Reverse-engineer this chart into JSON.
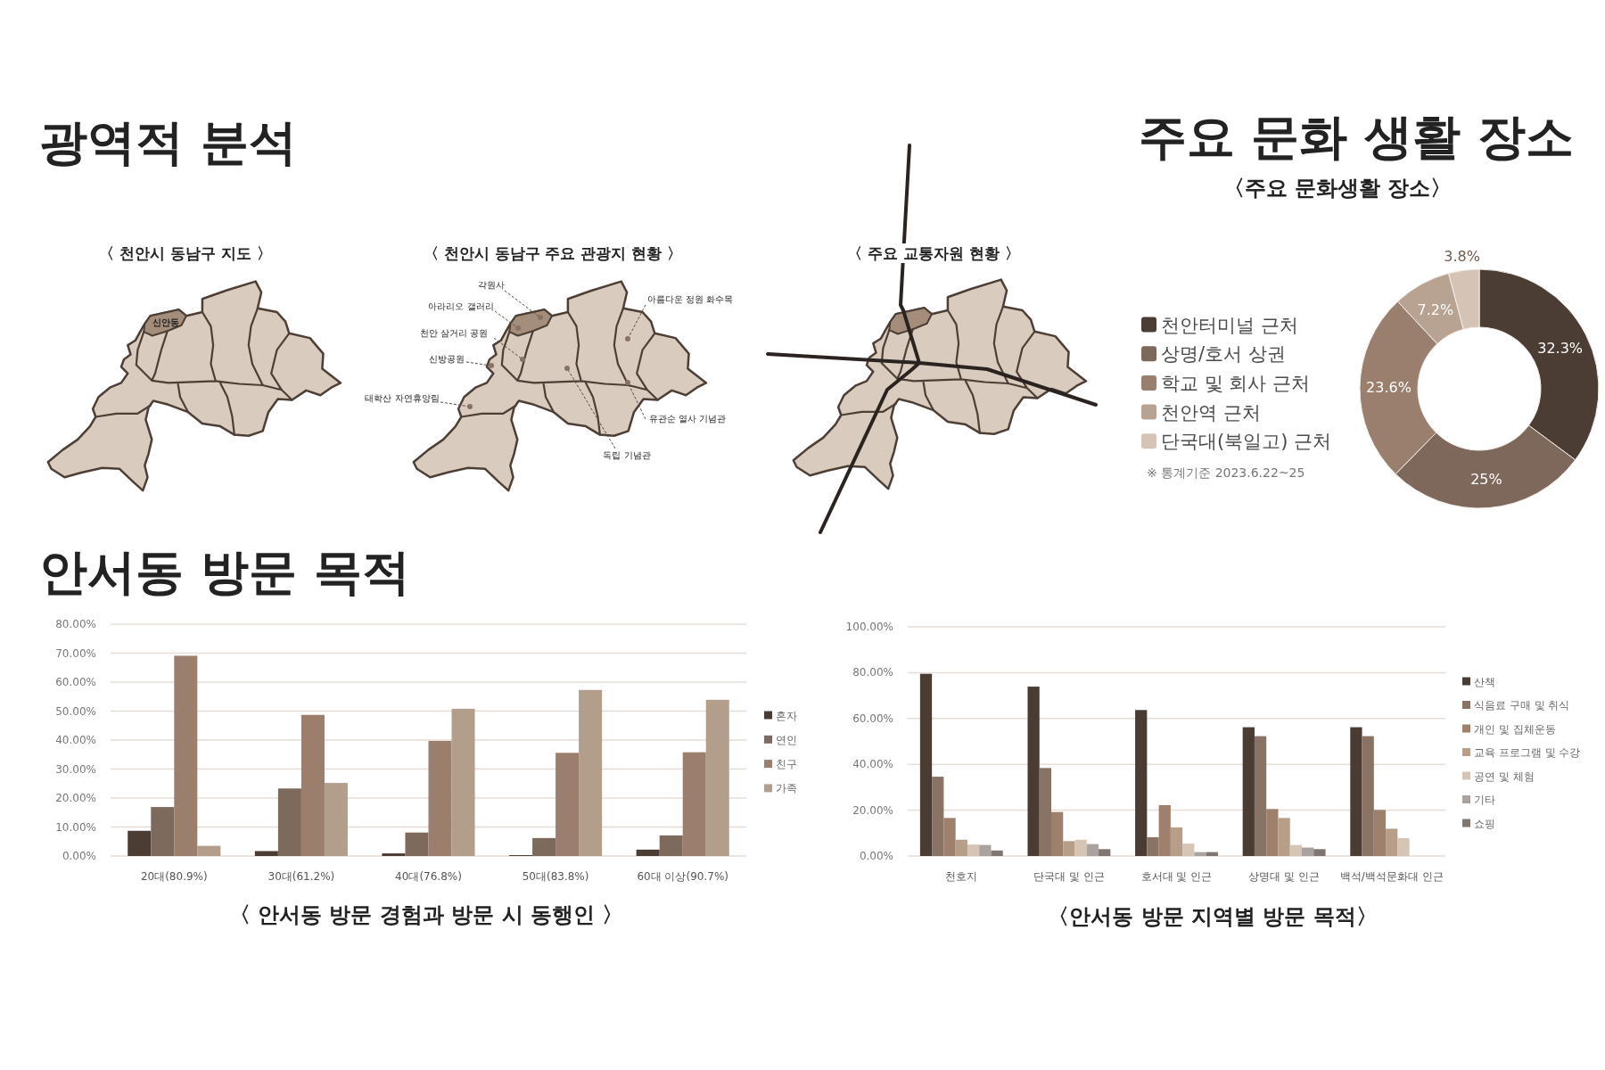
{
  "chart_data": [
    {
      "type": "other",
      "title": "광역적 분석",
      "annotations": [
        "〈 천안시 동남구 지도 〉",
        "〈 천안시 동남구 주요 관광지 현황 〉",
        "〈 주요 교통자원 현황 〉",
        "신안동",
        "각원사",
        "아라리오 갤러리",
        "천안 삼거리 공원",
        "신방공원",
        "태학산 자연휴양림",
        "아름다운 정원 화수목",
        "유관순 열사 기념관",
        "독립 기념관"
      ]
    },
    {
      "type": "donut",
      "title": "주요 문화 생활 장소",
      "subtitle": "〈주요 문화생활 장소〉",
      "categories": [
        "천안터미널 근처",
        "상명/호서 상권",
        "학교 및 회사 근처",
        "천안역 근처",
        "단국대(북일고) 근처"
      ],
      "values": [
        32.3,
        25,
        23.6,
        7.2,
        3.8
      ],
      "value_labels": [
        "32.3%",
        "25%",
        "23.6%",
        "7.2%",
        "3.8%"
      ],
      "colors": [
        "#4b3d34",
        "#7d685b",
        "#9b7f6e",
        "#b8a291",
        "#d5c4b6"
      ],
      "legend": "left",
      "annotations": [
        "※ 통계기준 2023.6.22~25"
      ]
    },
    {
      "type": "bar",
      "title": "안서동 방문 목적",
      "subtitle": "〈 안서동 방문 경험과 방문 시 동행인 〉",
      "categories": [
        "20대(80.9%)",
        "30대(61.2%)",
        "40대(76.8%)",
        "50대(83.8%)",
        "60대 이상(90.7%)"
      ],
      "series": [
        {
          "name": "혼자",
          "color": "#4b3d34",
          "values": [
            8.7,
            1.7,
            0.9,
            0.3,
            2.2
          ]
        },
        {
          "name": "연인",
          "color": "#7e6a5d",
          "values": [
            16.9,
            23.3,
            8.1,
            6.2,
            7.1
          ]
        },
        {
          "name": "친구",
          "color": "#9c7e6c",
          "values": [
            69.1,
            48.7,
            39.7,
            35.6,
            35.8
          ]
        },
        {
          "name": "가족",
          "color": "#b39d8b",
          "values": [
            3.5,
            25.2,
            50.8,
            57.3,
            53.9
          ]
        }
      ],
      "ylim": [
        0,
        80
      ],
      "yticks": [
        {
          "value": 0,
          "label": "0.00%"
        },
        {
          "value": 10,
          "label": "10.00%"
        },
        {
          "value": 20,
          "label": "20.00%"
        },
        {
          "value": 30,
          "label": "30.00%"
        },
        {
          "value": 40,
          "label": "40.00%"
        },
        {
          "value": 50,
          "label": "50.00%"
        },
        {
          "value": 60,
          "label": "60.00%"
        },
        {
          "value": 70,
          "label": "70.00%"
        },
        {
          "value": 80,
          "label": "80.00%"
        }
      ],
      "grid": "y",
      "legend": "right"
    },
    {
      "type": "bar",
      "title": "〈안서동 방문 지역별 방문 목적〉",
      "categories": [
        "천호지",
        "단국대 및 인근",
        "호서대 및 인근",
        "상명대 및 인근",
        "백석/백석문화대 인근"
      ],
      "series": [
        {
          "name": "산책",
          "color": "#4a3c33",
          "values": [
            79.5,
            73.9,
            63.7,
            56.2,
            56.2
          ]
        },
        {
          "name": "식음료 구매 및 취식",
          "color": "#887365",
          "values": [
            34.6,
            38.4,
            8.2,
            52.3,
            52.3
          ]
        },
        {
          "name": "개인 및 집체운동",
          "color": "#9f806d",
          "values": [
            16.6,
            19.2,
            22.2,
            20.5,
            20.1
          ]
        },
        {
          "name": "교육 프로그램 및 수강",
          "color": "#b79e89",
          "values": [
            7.1,
            6.5,
            12.5,
            16.6,
            11.9
          ]
        },
        {
          "name": "공연 및 체험",
          "color": "#d6c5b5",
          "values": [
            5.0,
            7.1,
            5.4,
            4.8,
            7.8
          ]
        },
        {
          "name": "기타",
          "color": "#aaa29e",
          "values": [
            4.8,
            5.2,
            1.7,
            3.7,
            null
          ]
        },
        {
          "name": "쇼핑",
          "color": "#7f7571",
          "values": [
            2.4,
            3.0,
            1.7,
            3.0,
            null
          ]
        }
      ],
      "ylim": [
        0,
        100
      ],
      "yticks": [
        {
          "value": 0,
          "label": "0.00%"
        },
        {
          "value": 20,
          "label": "20.00%"
        },
        {
          "value": 40,
          "label": "40.00%"
        },
        {
          "value": 60,
          "label": "60.00%"
        },
        {
          "value": 80,
          "label": "80.00%"
        },
        {
          "value": 100,
          "label": "100.00%"
        }
      ],
      "grid": "y",
      "legend": "right"
    }
  ]
}
